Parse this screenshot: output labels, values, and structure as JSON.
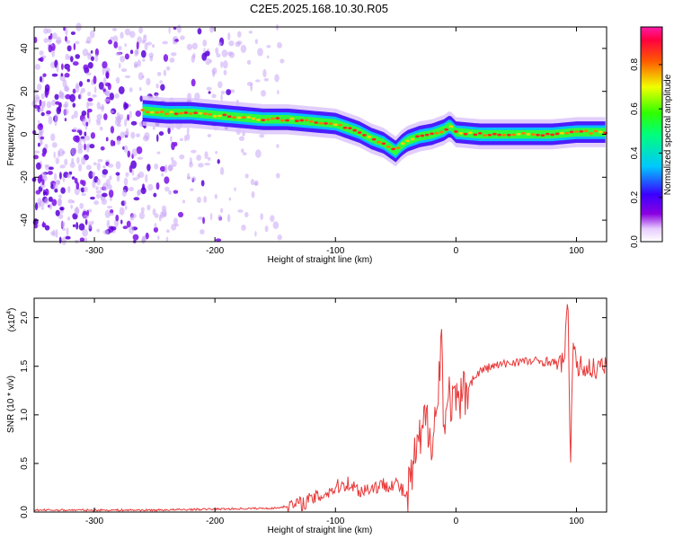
{
  "page_title": "C2E5.2025.168.10.30.R05",
  "colors": {
    "signal_line": "#e83a3a",
    "frame": "#000000",
    "background": "#ffffff"
  },
  "chart_data": [
    {
      "type": "heatmap",
      "xlabel": "Height of straight line (km)",
      "ylabel": "Frequency (Hz)",
      "xlim": [
        -350,
        125
      ],
      "ylim": [
        -50,
        50
      ],
      "x_ticks": [
        -300,
        -200,
        -100,
        0,
        100
      ],
      "y_ticks": [
        -40,
        -20,
        0,
        20,
        40
      ],
      "x_tick_labels": [
        "-300",
        "-200",
        "-100",
        "0",
        "100"
      ],
      "y_tick_labels": [
        "-40",
        "-20",
        "0",
        "20",
        "40"
      ],
      "colorbar": {
        "label": "Normalized spectral amplitude",
        "range": [
          0,
          0.97
        ],
        "ticks": [
          0.0,
          0.2,
          0.4,
          0.6,
          0.8
        ],
        "tick_labels": [
          "0.0",
          "0.2",
          "0.4",
          "0.6",
          "0.8"
        ],
        "colormap": "rainbow (white-violet-blue-cyan-green-yellow-red-magenta)"
      },
      "ridge": {
        "x": [
          -260,
          -240,
          -220,
          -200,
          -180,
          -160,
          -140,
          -120,
          -100,
          -90,
          -80,
          -70,
          -60,
          -50,
          -45,
          -40,
          -30,
          -20,
          -10,
          -5,
          0,
          20,
          40,
          60,
          80,
          100,
          125
        ],
        "freq": [
          11,
          10,
          10,
          9,
          8,
          7,
          7,
          6,
          5,
          3,
          1,
          -2,
          -4,
          -8,
          -5,
          -3,
          -1,
          0,
          2,
          4,
          1,
          0,
          0,
          0,
          0,
          1,
          1
        ]
      },
      "noise_region_km": [
        -350,
        -140
      ]
    },
    {
      "type": "line",
      "xlabel": "Height of straight line (km)",
      "ylabel": "SNR (10 * v/v)",
      "exponent_label": "(x10",
      "exponent_power": "4",
      "exponent_close": ")",
      "xlim": [
        -350,
        125
      ],
      "ylim": [
        0,
        2.2
      ],
      "x_ticks": [
        -300,
        -200,
        -100,
        0,
        100
      ],
      "y_ticks": [
        0.0,
        0.5,
        1.0,
        1.5,
        2.0
      ],
      "x_tick_labels": [
        "-300",
        "-200",
        "-100",
        "0",
        "100"
      ],
      "y_tick_labels": [
        "0.0",
        "0.5",
        "1.0",
        "1.5",
        "2.0"
      ],
      "series": [
        {
          "x": [
            -350,
            -300,
            -250,
            -200,
            -150,
            -130,
            -110,
            -100,
            -90,
            -80,
            -70,
            -60,
            -50,
            -40,
            -35,
            -30,
            -25,
            -20,
            -15,
            -12,
            -10,
            -5,
            0,
            10,
            20,
            30,
            40,
            50,
            60,
            70,
            80,
            85,
            90,
            93,
            95,
            97,
            100,
            110,
            125
          ],
          "y": [
            0.02,
            0.02,
            0.02,
            0.03,
            0.04,
            0.08,
            0.18,
            0.25,
            0.3,
            0.22,
            0.25,
            0.28,
            0.3,
            0.15,
            0.5,
            0.7,
            0.95,
            0.8,
            1.1,
            1.9,
            0.9,
            1.2,
            1.05,
            1.3,
            1.45,
            1.5,
            1.52,
            1.55,
            1.55,
            1.55,
            1.55,
            1.5,
            1.6,
            2.15,
            0.5,
            1.7,
            1.5,
            1.48,
            1.48
          ]
        }
      ]
    }
  ]
}
